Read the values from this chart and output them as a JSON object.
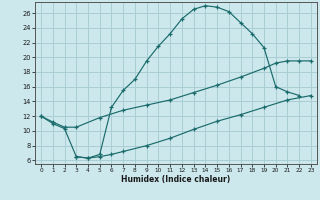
{
  "title": "",
  "xlabel": "Humidex (Indice chaleur)",
  "bg_color": "#cce8ed",
  "grid_color": "#aacdd4",
  "line_color": "#1a6b6b",
  "xlim": [
    -0.5,
    23.5
  ],
  "ylim": [
    5.5,
    27.5
  ],
  "xticks": [
    0,
    1,
    2,
    3,
    4,
    5,
    6,
    7,
    8,
    9,
    10,
    11,
    12,
    13,
    14,
    15,
    16,
    17,
    18,
    19,
    20,
    21,
    22,
    23
  ],
  "yticks": [
    6,
    8,
    10,
    12,
    14,
    16,
    18,
    20,
    22,
    24,
    26
  ],
  "curve1_x": [
    0,
    1,
    2,
    3,
    4,
    5,
    6,
    7,
    8,
    9,
    10,
    11,
    12,
    13,
    14,
    15,
    16,
    17,
    18,
    19,
    20,
    21,
    22
  ],
  "curve1_y": [
    12.0,
    11.0,
    10.3,
    6.5,
    6.3,
    6.8,
    13.2,
    15.5,
    17.0,
    19.5,
    21.5,
    23.2,
    25.2,
    26.5,
    27.0,
    26.8,
    26.2,
    24.7,
    23.2,
    21.3,
    16.0,
    15.3,
    14.8
  ],
  "curve2_x": [
    0,
    1,
    2,
    3,
    5,
    7,
    9,
    11,
    13,
    15,
    17,
    19,
    20,
    21,
    22,
    23
  ],
  "curve2_y": [
    12.0,
    11.2,
    10.5,
    10.5,
    11.8,
    12.8,
    13.5,
    14.2,
    15.2,
    16.2,
    17.3,
    18.5,
    19.2,
    19.5,
    19.5,
    19.5
  ],
  "curve3_x": [
    3,
    4,
    5,
    6,
    7,
    9,
    11,
    13,
    15,
    17,
    19,
    21,
    23
  ],
  "curve3_y": [
    6.5,
    6.3,
    6.5,
    6.8,
    7.2,
    8.0,
    9.0,
    10.2,
    11.3,
    12.2,
    13.2,
    14.2,
    14.8
  ]
}
